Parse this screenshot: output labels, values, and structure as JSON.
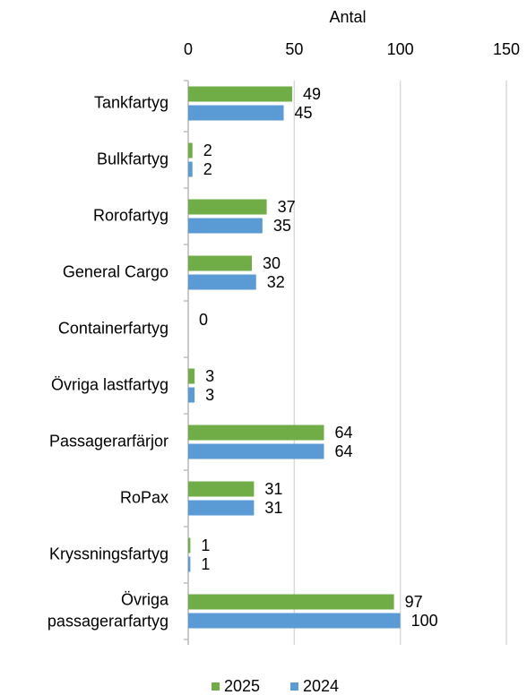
{
  "chart_data": {
    "type": "barh",
    "x_label": "Antal",
    "categories": [
      "Tankfartyg",
      "Bulkfartyg",
      "Rorofartyg",
      "General Cargo",
      "Containerfartyg",
      "Övriga lastfartyg",
      "Passagerarfärjor",
      "RoPax",
      "Kryssningsfartyg",
      "Övriga passagerarfartyg"
    ],
    "series": [
      {
        "name": "2025",
        "color": "#70ad47",
        "values": [
          49,
          2,
          37,
          30,
          0,
          3,
          64,
          31,
          1,
          97
        ]
      },
      {
        "name": "2024",
        "color": "#5b9bd5",
        "values": [
          45,
          2,
          35,
          32,
          null,
          3,
          64,
          31,
          1,
          100
        ]
      }
    ],
    "xlim": [
      0,
      150
    ],
    "xticks": [
      0,
      50,
      100,
      150
    ],
    "grid": true,
    "legend": "bottom"
  }
}
